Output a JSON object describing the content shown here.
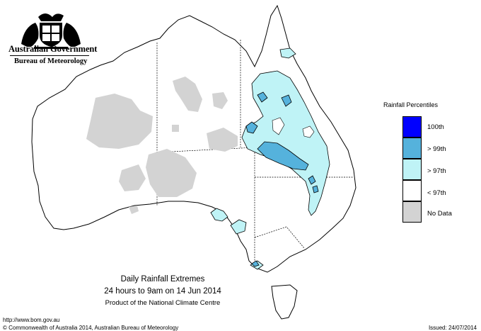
{
  "header": {
    "government": "Australian Government",
    "bureau": "Bureau of Meteorology"
  },
  "legend": {
    "title": "Rainfall Percentiles",
    "items": [
      {
        "label": "100th",
        "color": "#0000ff"
      },
      {
        "label": "> 99th",
        "color": "#55b2dc"
      },
      {
        "label": "> 97th",
        "color": "#bff3f6"
      },
      {
        "label": "< 97th",
        "color": "#ffffff"
      },
      {
        "label": "No Data",
        "color": "#d3d3d3"
      }
    ]
  },
  "caption": {
    "line1": "Daily Rainfall Extremes",
    "line2": "24 hours to 9am on 14 Jun 2014",
    "line3": "Product of the National Climate Centre"
  },
  "footer": {
    "url": "http://www.bom.gov.au",
    "copyright": "© Commonwealth of Australia 2014, Australian Bureau of Meteorology",
    "issued": "Issued: 24/07/2014"
  },
  "colors": {
    "no_data": "#d3d3d3",
    "above_97": "#bff3f6",
    "above_99": "#55b2dc",
    "outline": "#000000"
  }
}
